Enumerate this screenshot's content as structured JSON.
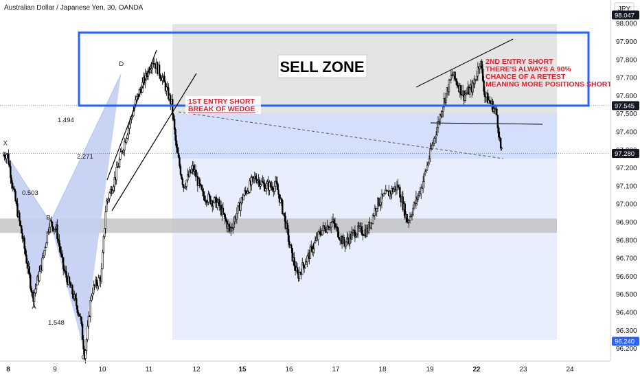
{
  "chart_data": {
    "type": "candlestick",
    "title": "Australian Dollar / Japanese Yen, 30, OANDA",
    "currency": "JPY",
    "ylim": [
      96.13,
      98.13
    ],
    "y_ticks": [
      98.0,
      97.9,
      97.8,
      97.7,
      97.6,
      97.5,
      97.4,
      97.3,
      97.2,
      97.1,
      97.0,
      96.9,
      96.8,
      96.7,
      96.6,
      96.5,
      96.4,
      96.3,
      96.2
    ],
    "y_tick_labels": [
      "98.000",
      "97.900",
      "97.800",
      "97.700",
      "97.600",
      "97.500",
      "97.400",
      "97.300",
      "97.200",
      "97.100",
      "97.000",
      "96.900",
      "96.800",
      "96.700",
      "96.600",
      "96.500",
      "96.400",
      "96.300",
      "96.200"
    ],
    "x_ticks": [
      {
        "label": "8",
        "bold": true,
        "x": 0
      },
      {
        "label": "9",
        "bold": false,
        "x": 1
      },
      {
        "label": "10",
        "bold": false,
        "x": 2
      },
      {
        "label": "11",
        "bold": false,
        "x": 3
      },
      {
        "label": "12",
        "bold": false,
        "x": 4
      },
      {
        "label": "15",
        "bold": true,
        "x": 5
      },
      {
        "label": "16",
        "bold": false,
        "x": 6
      },
      {
        "label": "17",
        "bold": false,
        "x": 7
      },
      {
        "label": "18",
        "bold": false,
        "x": 8
      },
      {
        "label": "19",
        "bold": false,
        "x": 9
      },
      {
        "label": "22",
        "bold": true,
        "x": 10
      },
      {
        "label": "23",
        "bold": false,
        "x": 11
      },
      {
        "label": "24",
        "bold": false,
        "x": 12
      }
    ],
    "price_path": [
      [
        -0.1,
        97.27
      ],
      [
        0.0,
        97.28
      ],
      [
        0.15,
        97.05
      ],
      [
        0.35,
        96.78
      ],
      [
        0.55,
        96.48
      ],
      [
        0.75,
        96.68
      ],
      [
        0.9,
        96.9
      ],
      [
        1.05,
        96.86
      ],
      [
        1.2,
        96.64
      ],
      [
        1.4,
        96.5
      ],
      [
        1.55,
        96.38
      ],
      [
        1.65,
        96.16
      ],
      [
        1.8,
        96.52
      ],
      [
        2.0,
        96.6
      ],
      [
        2.1,
        97.0
      ],
      [
        2.3,
        97.15
      ],
      [
        2.5,
        97.35
      ],
      [
        2.75,
        97.58
      ],
      [
        3.1,
        97.8
      ],
      [
        3.3,
        97.7
      ],
      [
        3.5,
        97.55
      ],
      [
        3.6,
        97.3
      ],
      [
        3.75,
        97.1
      ],
      [
        3.95,
        97.2
      ],
      [
        4.15,
        97.05
      ],
      [
        4.5,
        97.0
      ],
      [
        4.75,
        96.85
      ],
      [
        5.05,
        97.05
      ],
      [
        5.3,
        97.15
      ],
      [
        5.5,
        97.1
      ],
      [
        5.75,
        97.1
      ],
      [
        5.9,
        96.95
      ],
      [
        6.05,
        96.75
      ],
      [
        6.2,
        96.6
      ],
      [
        6.45,
        96.72
      ],
      [
        6.7,
        96.85
      ],
      [
        6.95,
        96.9
      ],
      [
        7.2,
        96.78
      ],
      [
        7.45,
        96.85
      ],
      [
        7.7,
        96.85
      ],
      [
        7.9,
        97.0
      ],
      [
        8.1,
        97.05
      ],
      [
        8.35,
        97.1
      ],
      [
        8.55,
        96.9
      ],
      [
        8.7,
        97.0
      ],
      [
        8.85,
        97.1
      ],
      [
        9.05,
        97.3
      ],
      [
        9.2,
        97.45
      ],
      [
        9.3,
        97.55
      ],
      [
        9.5,
        97.72
      ],
      [
        9.75,
        97.6
      ],
      [
        9.95,
        97.65
      ],
      [
        10.1,
        97.8
      ],
      [
        10.2,
        97.6
      ],
      [
        10.35,
        97.55
      ],
      [
        10.45,
        97.5
      ],
      [
        10.55,
        97.28
      ]
    ],
    "harmonic_points": [
      {
        "label": "X",
        "x": -0.05,
        "y": 97.28
      },
      {
        "label": "A",
        "x": 0.55,
        "y": 96.48
      },
      {
        "label": "B",
        "x": 0.9,
        "y": 96.9
      },
      {
        "label": "C",
        "x": 1.6,
        "y": 96.2
      },
      {
        "label": "D",
        "x": 2.4,
        "y": 97.72
      }
    ],
    "ratio_labels": [
      "0.503",
      "1.548",
      "2.271",
      "1.494"
    ],
    "sell_zone": {
      "label": "SELL ZONE",
      "y_top": 97.95,
      "y_bottom": 97.545
    },
    "support_band": [
      96.84,
      96.92
    ],
    "price_tags": [
      {
        "value": "98.047",
        "y": 98.047,
        "style": "dark"
      },
      {
        "value": "97.545",
        "y": 97.545,
        "style": "dark"
      },
      {
        "value": "97.280",
        "y": 97.28,
        "style": "dark"
      },
      {
        "value": "96.240",
        "y": 96.24,
        "style": "blue"
      }
    ],
    "annotations": [
      {
        "lines": [
          "1ST ENTRY SHORT",
          "BREAK OF WEDGE"
        ]
      },
      {
        "lines": [
          "2ND ENTRY SHORT",
          "THERE'S ALWAYS A 90%",
          "CHANCE OF A RETEST",
          "MEANING MORE POSITIONS SHORT"
        ]
      }
    ],
    "colors": {
      "candle": "#000000",
      "pattern_fill": "#c3cff3",
      "sell_zone_border": "#2962ff",
      "annotation_text": "#e8202f",
      "price_tag_blue": "#2962ff",
      "price_tag_dark": "#131722"
    }
  }
}
